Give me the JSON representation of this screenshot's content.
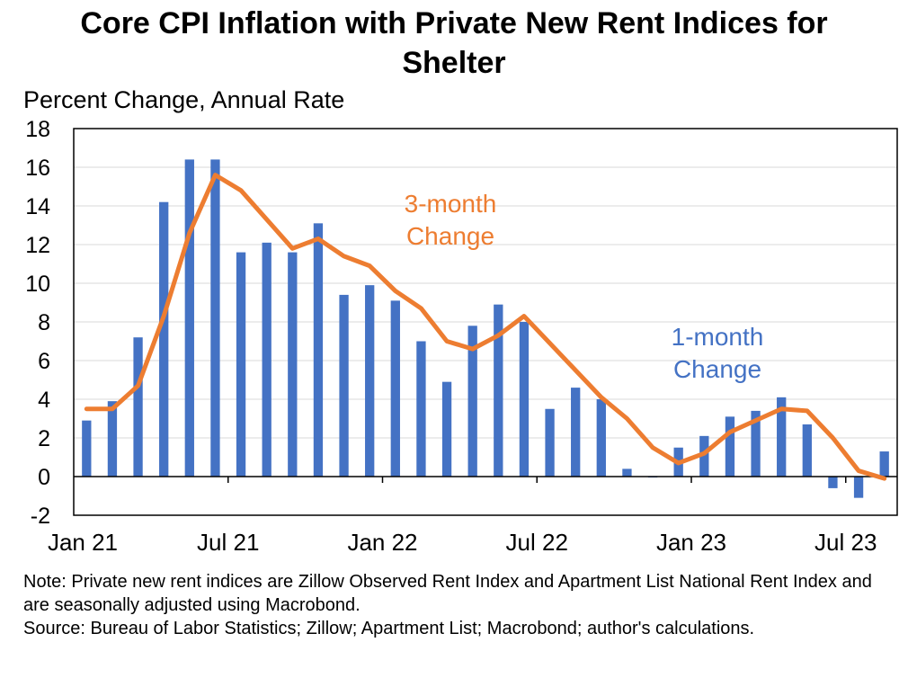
{
  "chart_data": {
    "type": "bar+line",
    "title_line1": "Core CPI Inflation with Private New Rent Indices for",
    "title_line2": "Shelter",
    "ylabel": "Percent Change, Annual Rate",
    "ylim": [
      -2,
      18
    ],
    "yticks": [
      -2,
      0,
      2,
      4,
      6,
      8,
      10,
      12,
      14,
      16,
      18
    ],
    "grid": true,
    "x_months": [
      "Jan 21",
      "Feb 21",
      "Mar 21",
      "Apr 21",
      "May 21",
      "Jun 21",
      "Jul 21",
      "Aug 21",
      "Sep 21",
      "Oct 21",
      "Nov 21",
      "Dec 21",
      "Jan 22",
      "Feb 22",
      "Mar 22",
      "Apr 22",
      "May 22",
      "Jun 22",
      "Jul 22",
      "Aug 22",
      "Sep 22",
      "Oct 22",
      "Nov 22",
      "Dec 22",
      "Jan 23",
      "Feb 23",
      "Mar 23",
      "Apr 23",
      "May 23",
      "Jun 23",
      "Jul 23",
      "Aug 23"
    ],
    "xtick_labels": [
      {
        "label": "Jan 21",
        "index": 0
      },
      {
        "label": "Jul 21",
        "index": 6
      },
      {
        "label": "Jan 22",
        "index": 12
      },
      {
        "label": "Jul 22",
        "index": 18
      },
      {
        "label": "Jan 23",
        "index": 24
      },
      {
        "label": "Jul 23",
        "index": 30
      }
    ],
    "series": [
      {
        "name": "1-month Change",
        "label_lines": [
          "1-month",
          "Change"
        ],
        "kind": "bar",
        "color": "#4472C4",
        "values": [
          2.9,
          3.9,
          7.2,
          14.2,
          16.4,
          16.4,
          11.6,
          12.1,
          11.6,
          13.1,
          9.4,
          9.9,
          9.1,
          7.0,
          4.9,
          7.8,
          8.9,
          8.0,
          3.5,
          4.6,
          4.0,
          0.4,
          0.0,
          1.5,
          2.1,
          3.1,
          3.4,
          4.1,
          2.7,
          -0.6,
          -1.1,
          1.3
        ]
      },
      {
        "name": "3-month Change",
        "label_lines": [
          "3-month",
          "Change"
        ],
        "kind": "line",
        "color": "#ED7D31",
        "values": [
          3.5,
          3.5,
          4.7,
          8.3,
          12.6,
          15.6,
          14.8,
          13.3,
          11.8,
          12.3,
          11.4,
          10.9,
          9.6,
          8.7,
          7.0,
          6.6,
          7.3,
          8.3,
          6.9,
          5.5,
          4.1,
          3.0,
          1.5,
          0.7,
          1.2,
          2.3,
          2.9,
          3.5,
          3.4,
          2.0,
          0.3,
          -0.1
        ]
      }
    ]
  },
  "notes": {
    "note": "Note: Private new rent indices are Zillow Observed Rent Index and Apartment List National Rent Index and are seasonally adjusted using Macrobond.",
    "source": "Source: Bureau of Labor Statistics; Zillow; Apartment List; Macrobond; author's calculations."
  }
}
